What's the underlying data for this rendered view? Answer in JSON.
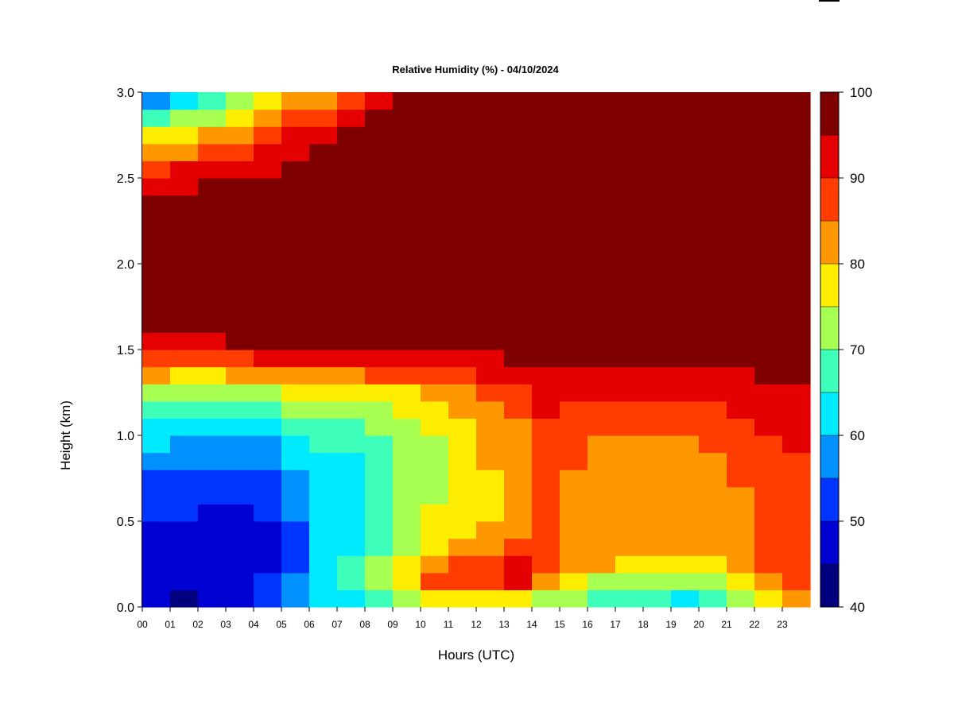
{
  "chart_data": {
    "type": "heatmap",
    "title": "Relative Humidity (%) - 04/10/2024",
    "xlabel": "Hours (UTC)",
    "ylabel": "Height (km)",
    "xlim": [
      0,
      24
    ],
    "ylim": [
      0.0,
      3.0
    ],
    "x_tick_labels": [
      "00",
      "01",
      "02",
      "03",
      "04",
      "05",
      "06",
      "07",
      "08",
      "09",
      "10",
      "11",
      "12",
      "13",
      "14",
      "15",
      "16",
      "17",
      "18",
      "19",
      "20",
      "21",
      "22",
      "23"
    ],
    "y_tick_labels": [
      "0.0",
      "0.5",
      "1.0",
      "1.5",
      "2.0",
      "2.5",
      "3.0"
    ],
    "y_ticks": [
      0.0,
      0.5,
      1.0,
      1.5,
      2.0,
      2.5,
      3.0
    ],
    "colorbar": {
      "levels": [
        40,
        45,
        50,
        55,
        60,
        65,
        70,
        75,
        80,
        85,
        90,
        95,
        100
      ],
      "tick_labels": [
        "40",
        "50",
        "60",
        "70",
        "80",
        "90",
        "100"
      ],
      "tick_values": [
        40,
        50,
        60,
        70,
        80,
        90,
        100
      ],
      "colors": [
        "#00007f",
        "#0000d2",
        "#0034ff",
        "#0090ff",
        "#00eaff",
        "#3dffba",
        "#a6ff51",
        "#ffed00",
        "#ff9700",
        "#ff3d00",
        "#e40000",
        "#7f0000"
      ]
    },
    "heights_km": [
      0.05,
      0.15,
      0.25,
      0.35,
      0.45,
      0.55,
      0.65,
      0.75,
      0.85,
      0.95,
      1.05,
      1.15,
      1.25,
      1.35,
      1.45,
      1.55,
      1.65,
      1.75,
      1.85,
      1.95,
      2.05,
      2.15,
      2.25,
      2.35,
      2.45,
      2.55,
      2.65,
      2.75,
      2.85,
      2.95
    ],
    "hours_utc": [
      0.5,
      1.5,
      2.5,
      3.5,
      4.5,
      5.5,
      6.5,
      7.5,
      8.5,
      9.5,
      10.5,
      11.5,
      12.5,
      13.5,
      14.5,
      15.5,
      16.5,
      17.5,
      18.5,
      19.5,
      20.5,
      21.5,
      22.5,
      23.5
    ],
    "rh_profiles": [
      [
        45,
        46,
        47,
        48,
        49,
        50,
        52,
        54,
        57,
        60,
        64,
        68,
        72,
        80,
        88,
        94,
        97,
        99,
        99,
        99,
        99,
        99,
        98,
        96,
        93,
        88,
        82,
        76,
        68,
        58
      ],
      [
        44,
        46,
        47,
        48,
        49,
        50,
        51,
        53,
        56,
        59,
        63,
        67,
        72,
        79,
        88,
        94,
        97,
        99,
        99,
        99,
        99,
        99,
        99,
        97,
        94,
        90,
        84,
        78,
        70,
        60
      ],
      [
        45,
        46,
        47,
        48,
        48,
        49,
        50,
        52,
        55,
        58,
        62,
        66,
        71,
        78,
        87,
        94,
        97,
        99,
        99,
        99,
        99,
        99,
        99,
        98,
        95,
        91,
        86,
        80,
        74,
        66
      ],
      [
        48,
        49,
        48,
        48,
        48,
        49,
        50,
        52,
        55,
        58,
        62,
        66,
        72,
        80,
        88,
        95,
        98,
        99,
        99,
        99,
        99,
        99,
        99,
        98,
        96,
        92,
        88,
        83,
        78,
        72
      ],
      [
        52,
        51,
        49,
        49,
        49,
        50,
        51,
        53,
        56,
        59,
        63,
        67,
        73,
        82,
        90,
        95,
        98,
        99,
        99,
        99,
        99,
        99,
        99,
        99,
        97,
        94,
        91,
        86,
        81,
        76
      ],
      [
        56,
        55,
        53,
        53,
        54,
        55,
        56,
        58,
        60,
        63,
        66,
        70,
        75,
        82,
        90,
        95,
        98,
        99,
        99,
        99,
        99,
        99,
        99,
        99,
        98,
        97,
        94,
        90,
        86,
        80
      ],
      [
        60,
        62,
        62,
        62,
        62,
        62,
        62,
        63,
        64,
        66,
        68,
        72,
        77,
        84,
        91,
        96,
        98,
        99,
        99,
        99,
        99,
        99,
        99,
        99,
        99,
        98,
        96,
        93,
        89,
        84
      ],
      [
        64,
        66,
        65,
        64,
        63,
        62,
        62,
        62,
        63,
        65,
        67,
        71,
        76,
        84,
        91,
        96,
        98,
        99,
        99,
        99,
        99,
        99,
        99,
        99,
        99,
        99,
        98,
        96,
        93,
        89
      ],
      [
        68,
        72,
        70,
        68,
        67,
        66,
        66,
        66,
        67,
        68,
        70,
        73,
        78,
        85,
        91,
        96,
        98,
        99,
        99,
        99,
        99,
        99,
        99,
        99,
        99,
        99,
        99,
        98,
        96,
        93
      ],
      [
        70,
        76,
        75,
        73,
        71,
        70,
        70,
        70,
        70,
        71,
        72,
        75,
        79,
        86,
        92,
        96,
        98,
        99,
        99,
        99,
        99,
        99,
        99,
        99,
        99,
        99,
        99,
        99,
        98,
        96
      ],
      [
        76,
        86,
        84,
        79,
        76,
        75,
        74,
        74,
        74,
        74,
        75,
        77,
        81,
        87,
        93,
        97,
        99,
        99,
        99,
        99,
        99,
        99,
        99,
        99,
        99,
        99,
        99,
        99,
        99,
        98
      ],
      [
        78,
        88,
        87,
        81,
        78,
        77,
        77,
        77,
        78,
        79,
        79,
        81,
        84,
        89,
        94,
        97,
        99,
        99,
        99,
        99,
        99,
        99,
        99,
        99,
        99,
        99,
        99,
        99,
        99,
        99
      ],
      [
        79,
        89,
        89,
        84,
        80,
        79,
        79,
        79,
        80,
        81,
        82,
        84,
        86,
        90,
        94,
        97,
        99,
        99,
        99,
        99,
        99,
        99,
        99,
        99,
        99,
        99,
        99,
        99,
        99,
        99
      ],
      [
        79,
        90,
        90,
        86,
        82,
        80,
        80,
        80,
        81,
        82,
        83,
        85,
        87,
        91,
        95,
        98,
        99,
        99,
        99,
        99,
        99,
        99,
        99,
        99,
        99,
        99,
        99,
        99,
        99,
        99
      ],
      [
        74,
        82,
        88,
        88,
        87,
        86,
        86,
        86,
        87,
        88,
        89,
        90,
        92,
        94,
        96,
        98,
        99,
        99,
        99,
        99,
        99,
        99,
        99,
        99,
        99,
        99,
        99,
        99,
        99,
        99
      ],
      [
        70,
        77,
        82,
        84,
        84,
        84,
        84,
        84,
        85,
        86,
        87,
        89,
        91,
        93,
        96,
        98,
        99,
        99,
        99,
        99,
        99,
        99,
        99,
        99,
        99,
        99,
        99,
        99,
        99,
        99
      ],
      [
        68,
        74,
        80,
        82,
        82,
        82,
        82,
        82,
        83,
        84,
        86,
        88,
        90,
        93,
        95,
        97,
        99,
        99,
        99,
        99,
        99,
        99,
        99,
        99,
        99,
        99,
        99,
        99,
        99,
        99
      ],
      [
        66,
        72,
        79,
        81,
        81,
        81,
        81,
        81,
        82,
        84,
        86,
        88,
        90,
        93,
        96,
        98,
        99,
        99,
        99,
        99,
        99,
        99,
        99,
        99,
        99,
        99,
        99,
        99,
        99,
        99
      ],
      [
        65,
        71,
        78,
        80,
        80,
        80,
        80,
        81,
        82,
        84,
        86,
        88,
        90,
        93,
        96,
        98,
        99,
        99,
        99,
        99,
        99,
        99,
        99,
        99,
        99,
        99,
        99,
        99,
        99,
        99
      ],
      [
        64,
        70,
        78,
        80,
        80,
        80,
        80,
        81,
        82,
        84,
        86,
        88,
        90,
        93,
        96,
        98,
        99,
        99,
        99,
        99,
        99,
        99,
        99,
        99,
        99,
        99,
        99,
        99,
        99,
        99
      ],
      [
        66,
        72,
        79,
        82,
        81,
        81,
        81,
        82,
        83,
        85,
        87,
        89,
        91,
        94,
        96,
        98,
        99,
        99,
        99,
        99,
        99,
        99,
        99,
        99,
        99,
        99,
        99,
        99,
        99,
        99
      ],
      [
        70,
        76,
        82,
        84,
        84,
        84,
        84,
        85,
        86,
        87,
        89,
        90,
        92,
        94,
        96,
        98,
        99,
        99,
        99,
        99,
        99,
        99,
        99,
        99,
        99,
        99,
        99,
        99,
        99,
        99
      ],
      [
        76,
        82,
        86,
        87,
        87,
        87,
        87,
        87,
        88,
        89,
        90,
        91,
        93,
        95,
        97,
        98,
        99,
        99,
        99,
        99,
        99,
        99,
        99,
        99,
        99,
        99,
        99,
        99,
        99,
        99
      ],
      [
        80,
        86,
        88,
        88,
        88,
        88,
        88,
        88,
        89,
        90,
        91,
        92,
        93,
        95,
        97,
        98,
        99,
        99,
        99,
        99,
        99,
        99,
        99,
        99,
        99,
        99,
        99,
        99,
        99,
        99
      ]
    ]
  }
}
